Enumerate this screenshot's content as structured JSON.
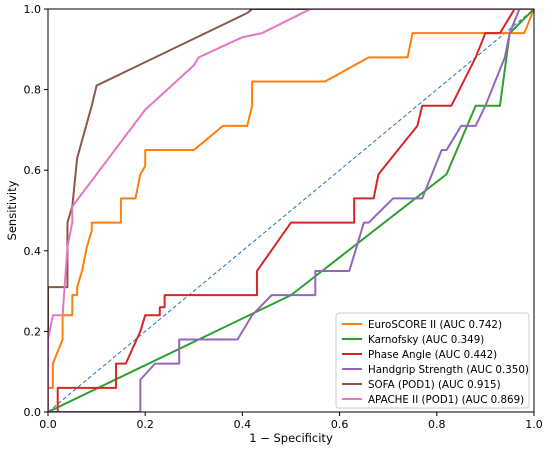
{
  "chart_data": {
    "type": "line",
    "title": "",
    "xlabel": "1 − Specificity",
    "ylabel": "Sensitivity",
    "xlim": [
      0,
      1
    ],
    "ylim": [
      0,
      1
    ],
    "xticks": [
      "0.0",
      "0.2",
      "0.4",
      "0.6",
      "0.8",
      "1.0"
    ],
    "yticks": [
      "0.0",
      "0.2",
      "0.4",
      "0.6",
      "0.8",
      "1.0"
    ],
    "grid": false,
    "legend_position": "lower-right",
    "reference_line": {
      "type": "diagonal",
      "style": "dashed",
      "color": "#1f77b4"
    },
    "series": [
      {
        "name": "EuroSCORE II (AUC 0.742)",
        "color": "#ff7f0e",
        "x": [
          0.0,
          0.0,
          0.01,
          0.01,
          0.03,
          0.03,
          0.05,
          0.05,
          0.06,
          0.06,
          0.07,
          0.08,
          0.09,
          0.09,
          0.15,
          0.15,
          0.18,
          0.19,
          0.19,
          0.2,
          0.2,
          0.3,
          0.36,
          0.41,
          0.42,
          0.42,
          0.57,
          0.6,
          0.66,
          0.74,
          0.75,
          0.98,
          1.0
        ],
        "y": [
          0.0,
          0.06,
          0.06,
          0.12,
          0.18,
          0.24,
          0.24,
          0.29,
          0.29,
          0.31,
          0.35,
          0.41,
          0.45,
          0.47,
          0.47,
          0.53,
          0.53,
          0.59,
          0.59,
          0.61,
          0.65,
          0.65,
          0.71,
          0.71,
          0.76,
          0.82,
          0.82,
          0.84,
          0.88,
          0.88,
          0.94,
          0.94,
          1.0
        ]
      },
      {
        "name": "Karnofsky (AUC 0.349)",
        "color": "#2ca02c",
        "x": [
          0.0,
          0.5,
          0.82,
          0.88,
          0.9,
          0.93,
          0.95,
          1.0
        ],
        "y": [
          0.0,
          0.29,
          0.59,
          0.76,
          0.76,
          0.76,
          0.94,
          1.0
        ]
      },
      {
        "name": "Phase Angle (AUC 0.442)",
        "color": "#d62728",
        "x": [
          0.0,
          0.02,
          0.02,
          0.14,
          0.14,
          0.16,
          0.19,
          0.19,
          0.2,
          0.23,
          0.23,
          0.24,
          0.24,
          0.43,
          0.43,
          0.5,
          0.63,
          0.63,
          0.67,
          0.67,
          0.68,
          0.72,
          0.76,
          0.77,
          0.82,
          0.83,
          0.88,
          0.88,
          0.9,
          0.9,
          0.93,
          0.96,
          1.0
        ],
        "y": [
          0.0,
          0.0,
          0.06,
          0.06,
          0.12,
          0.12,
          0.2,
          0.2,
          0.24,
          0.24,
          0.26,
          0.26,
          0.29,
          0.29,
          0.35,
          0.47,
          0.47,
          0.53,
          0.53,
          0.53,
          0.59,
          0.65,
          0.71,
          0.76,
          0.76,
          0.76,
          0.88,
          0.88,
          0.94,
          0.94,
          0.94,
          1.0,
          1.0
        ]
      },
      {
        "name": "Handgrip Strength (AUC 0.350)",
        "color": "#9467bd",
        "x": [
          0.0,
          0.19,
          0.19,
          0.22,
          0.27,
          0.27,
          0.39,
          0.42,
          0.46,
          0.5,
          0.53,
          0.55,
          0.55,
          0.62,
          0.65,
          0.66,
          0.71,
          0.77,
          0.79,
          0.79,
          0.81,
          0.82,
          0.85,
          0.88,
          0.9,
          0.92,
          0.94,
          0.95,
          0.97,
          1.0
        ],
        "y": [
          0.0,
          0.0,
          0.08,
          0.12,
          0.12,
          0.18,
          0.18,
          0.24,
          0.29,
          0.29,
          0.29,
          0.29,
          0.35,
          0.35,
          0.47,
          0.47,
          0.53,
          0.53,
          0.59,
          0.59,
          0.65,
          0.65,
          0.71,
          0.71,
          0.76,
          0.82,
          0.88,
          0.94,
          1.0,
          1.0
        ]
      },
      {
        "name": "SOFA (POD1) (AUC 0.915)",
        "color": "#8c564b",
        "x": [
          0.0,
          0.0,
          0.01,
          0.04,
          0.04,
          0.05,
          0.06,
          0.09,
          0.1,
          0.41,
          0.42,
          1.0
        ],
        "y": [
          0.0,
          0.31,
          0.31,
          0.31,
          0.47,
          0.51,
          0.63,
          0.76,
          0.81,
          0.99,
          1.0,
          1.0
        ]
      },
      {
        "name": "APACHE II (POD1) (AUC 0.869)",
        "color": "#e377c2",
        "x": [
          0.0,
          0.0,
          0.01,
          0.03,
          0.04,
          0.05,
          0.05,
          0.1,
          0.2,
          0.3,
          0.31,
          0.4,
          0.44,
          0.54,
          0.55,
          1.0
        ],
        "y": [
          0.0,
          0.18,
          0.24,
          0.24,
          0.41,
          0.47,
          0.51,
          0.59,
          0.75,
          0.86,
          0.88,
          0.93,
          0.94,
          1.0,
          1.0,
          1.0
        ]
      }
    ]
  }
}
